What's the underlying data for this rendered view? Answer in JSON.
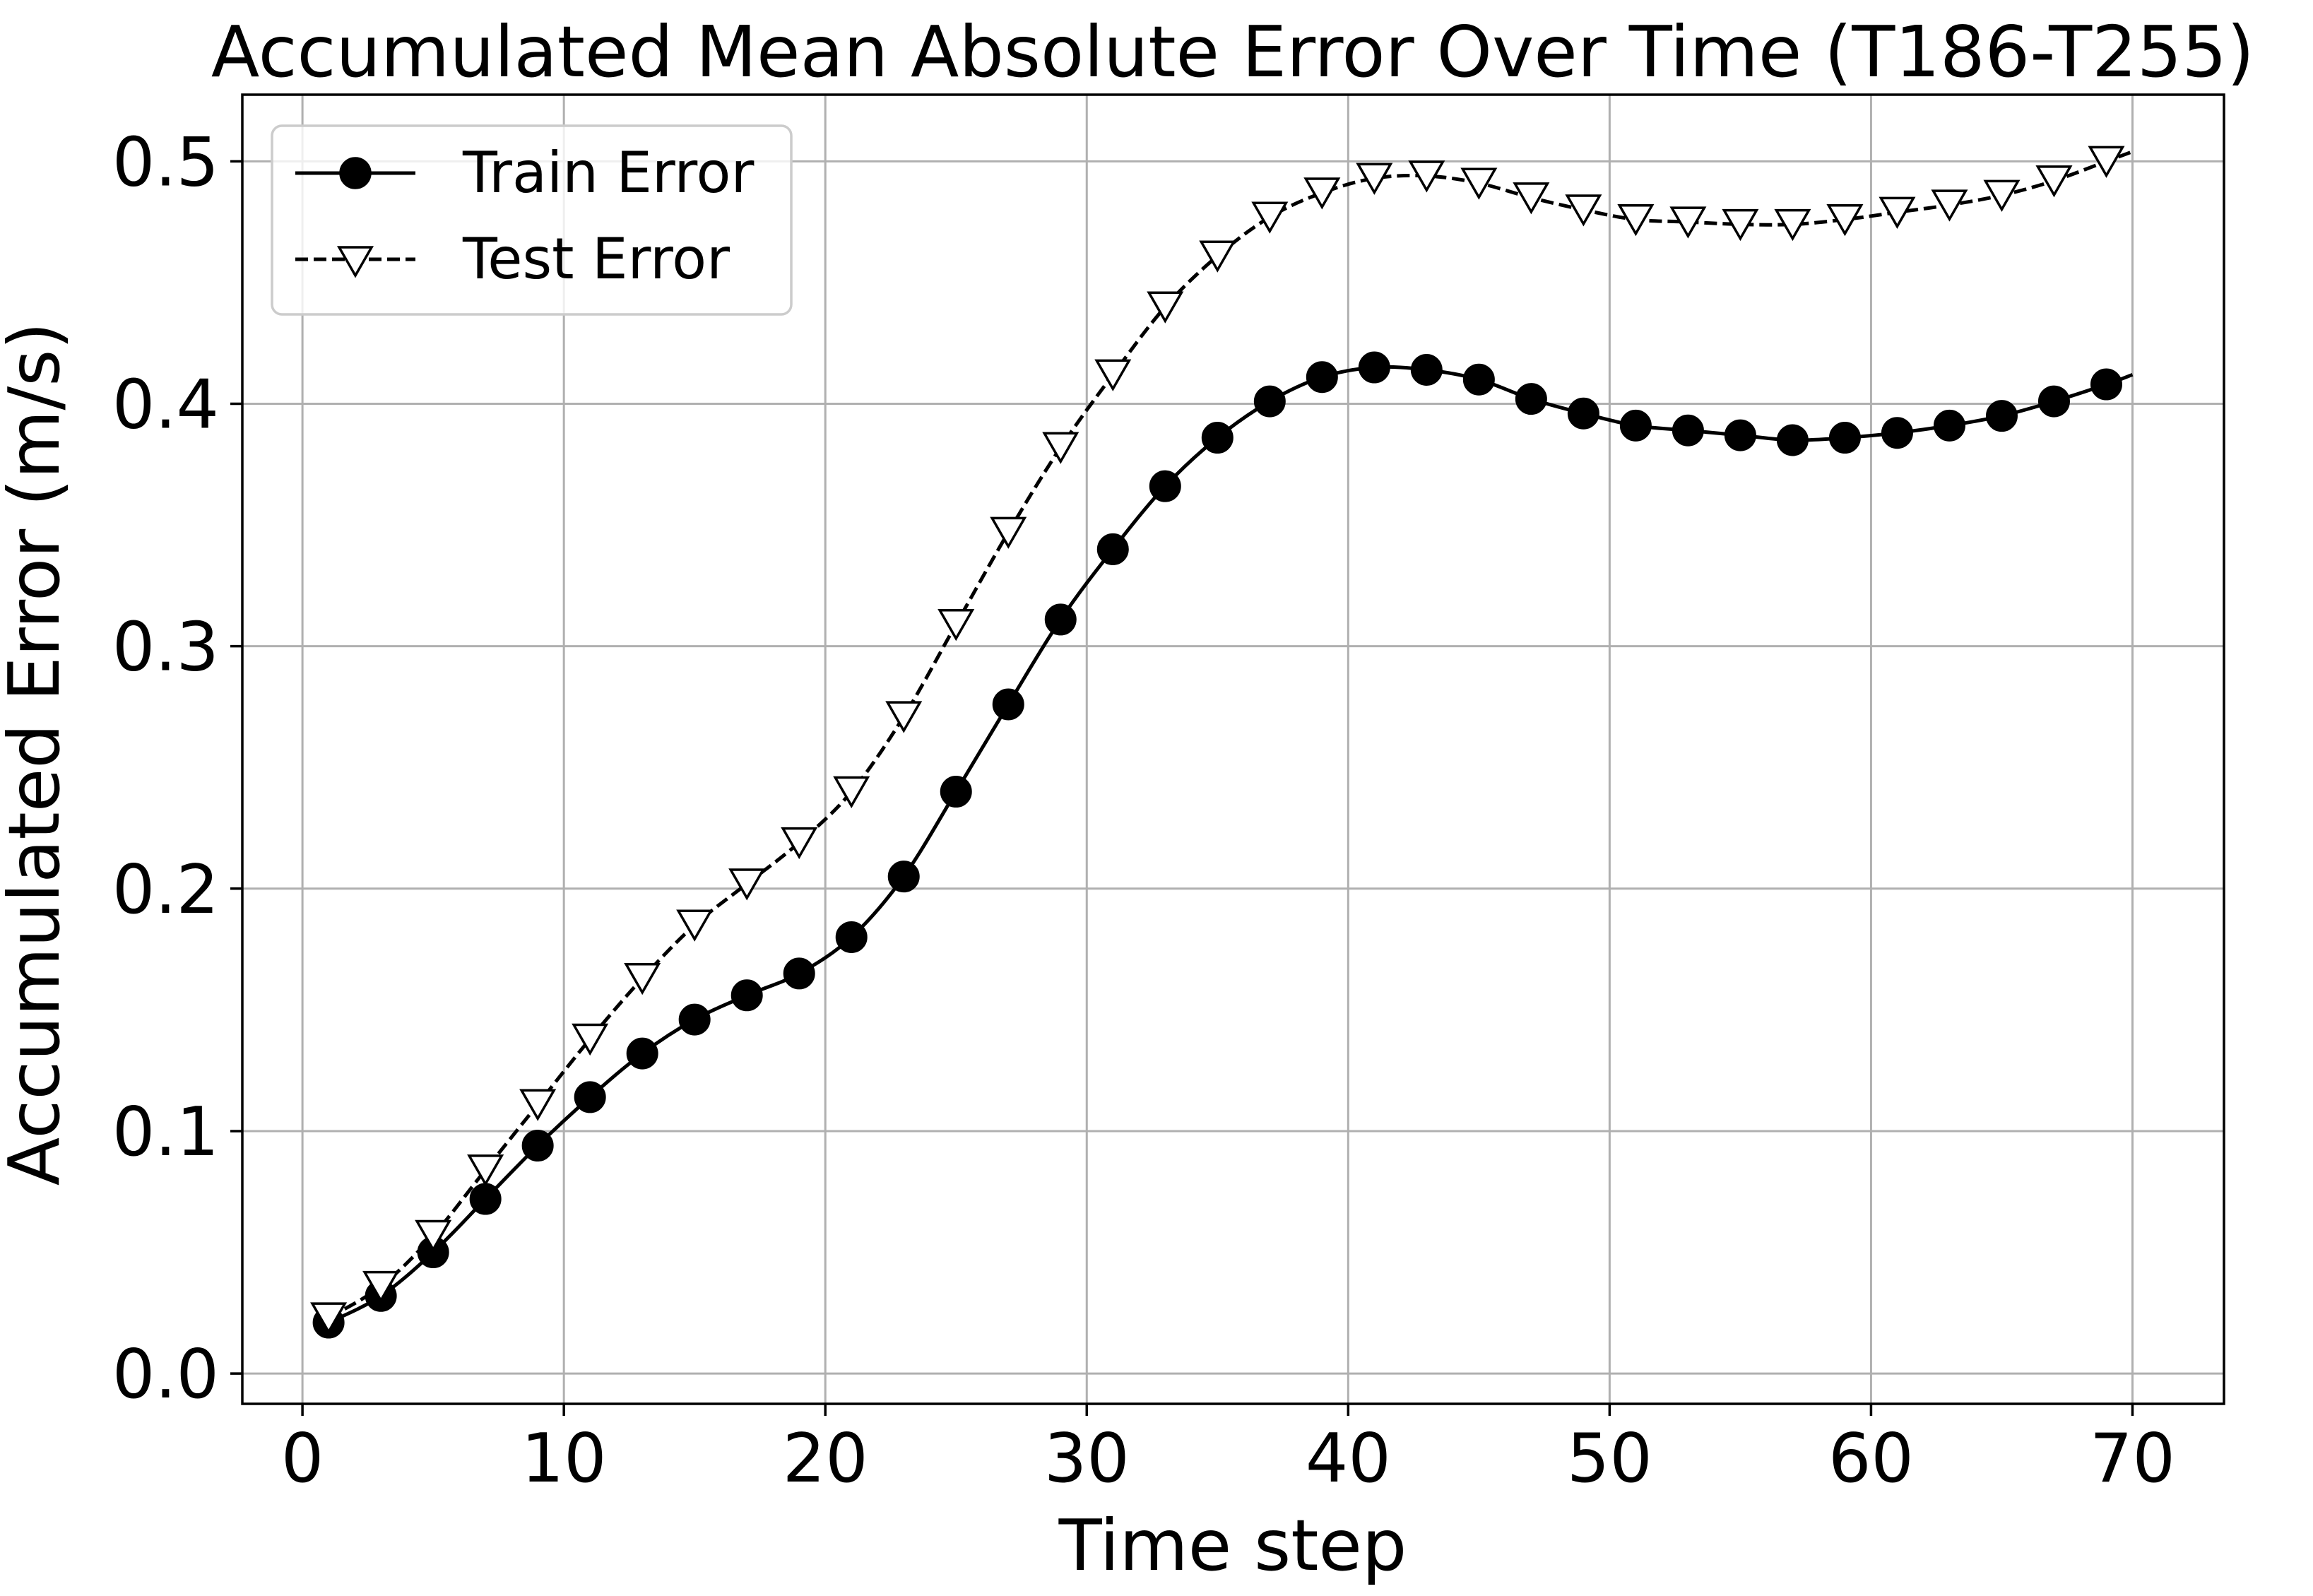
{
  "chart_data": {
    "type": "line",
    "title": "Accumulated Mean Absolute Error Over Time (T186-T255)",
    "xlabel": "Time step",
    "ylabel": "Accumulated Error (m/s)",
    "xlim": [
      -2.3,
      73.5
    ],
    "ylim": [
      -0.0125,
      0.5275
    ],
    "xticks": [
      0,
      10,
      20,
      30,
      40,
      50,
      60,
      70
    ],
    "xtick_labels": [
      "0",
      "10",
      "20",
      "30",
      "40",
      "50",
      "60",
      "70"
    ],
    "yticks": [
      0.0,
      0.1,
      0.2,
      0.3,
      0.4,
      0.5
    ],
    "ytick_labels": [
      "0.0",
      "0.1",
      "0.2",
      "0.3",
      "0.4",
      "0.5"
    ],
    "grid": true,
    "legend": {
      "position": "top-left",
      "entries": [
        "Train Error",
        "Test Error"
      ]
    },
    "series": [
      {
        "name": "Train Error",
        "line_style": "solid",
        "marker": "filled-circle",
        "color": "#000000",
        "x": [
          1,
          3,
          5,
          7,
          9,
          11,
          13,
          15,
          17,
          19,
          21,
          23,
          25,
          27,
          29,
          31,
          33,
          35,
          37,
          39,
          41,
          43,
          45,
          47,
          49,
          51,
          53,
          55,
          57,
          59,
          61,
          63,
          65,
          67,
          69
        ],
        "values": [
          0.021,
          0.032,
          0.05,
          0.072,
          0.094,
          0.114,
          0.132,
          0.146,
          0.156,
          0.165,
          0.18,
          0.205,
          0.24,
          0.276,
          0.311,
          0.34,
          0.366,
          0.386,
          0.401,
          0.411,
          0.415,
          0.414,
          0.41,
          0.402,
          0.396,
          0.391,
          0.389,
          0.387,
          0.385,
          0.386,
          0.388,
          0.391,
          0.395,
          0.401,
          0.408
        ],
        "line_end": [
          70,
          0.412
        ]
      },
      {
        "name": "Test Error",
        "line_style": "dashed",
        "marker": "open-triangle-down",
        "color": "#000000",
        "x": [
          1,
          3,
          5,
          7,
          9,
          11,
          13,
          15,
          17,
          19,
          21,
          23,
          25,
          27,
          29,
          31,
          33,
          35,
          37,
          39,
          41,
          43,
          45,
          47,
          49,
          51,
          53,
          55,
          57,
          59,
          61,
          63,
          65,
          67,
          69
        ],
        "values": [
          0.023,
          0.036,
          0.057,
          0.084,
          0.111,
          0.138,
          0.163,
          0.185,
          0.202,
          0.219,
          0.24,
          0.271,
          0.309,
          0.347,
          0.382,
          0.412,
          0.44,
          0.461,
          0.477,
          0.487,
          0.493,
          0.494,
          0.491,
          0.485,
          0.48,
          0.476,
          0.475,
          0.474,
          0.474,
          0.476,
          0.479,
          0.482,
          0.486,
          0.492,
          0.5
        ],
        "line_end": [
          70,
          0.504
        ]
      }
    ]
  }
}
